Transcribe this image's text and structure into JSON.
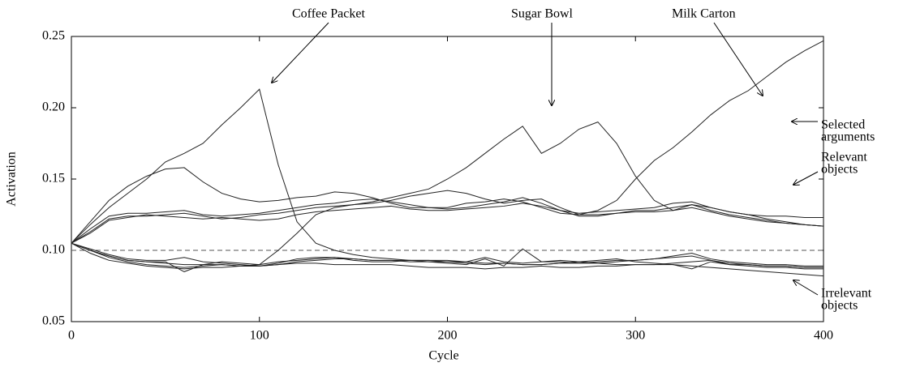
{
  "chart_data": {
    "type": "line",
    "x_label": "Cycle",
    "y_label": "Activation",
    "xlim": [
      0,
      400
    ],
    "xticks": [
      0,
      100,
      200,
      300,
      400
    ],
    "ylim": [
      0.05,
      0.25
    ],
    "yticks": [
      0.05,
      {
        "value": 0.1,
        "label": "0.10"
      },
      0.15,
      {
        "value": 0.2,
        "label": "0.20"
      },
      0.25
    ],
    "reference_line": 0.1,
    "x": [
      0,
      10,
      20,
      30,
      40,
      50,
      60,
      70,
      80,
      90,
      100,
      110,
      120,
      130,
      140,
      150,
      160,
      170,
      180,
      190,
      200,
      210,
      220,
      230,
      240,
      250,
      260,
      270,
      280,
      290,
      300,
      310,
      320,
      330,
      340,
      350,
      360,
      370,
      380,
      390,
      400
    ],
    "series": [
      {
        "color": "#222",
        "values": [
          0.105,
          0.118,
          0.13,
          0.14,
          0.15,
          0.162,
          0.168,
          0.175,
          0.188,
          0.2,
          0.213,
          0.16,
          0.12,
          0.105,
          0.1,
          0.097,
          0.095,
          0.094,
          0.093,
          0.093,
          0.092,
          0.092,
          0.091,
          0.091,
          0.09,
          0.09,
          0.091,
          0.092,
          0.091,
          0.09,
          0.09,
          0.09,
          0.091,
          0.092,
          0.093,
          0.09,
          0.09,
          0.089,
          0.089,
          0.088,
          0.088
        ]
      },
      {
        "color": "#222",
        "values": [
          0.105,
          0.1,
          0.096,
          0.093,
          0.092,
          0.091,
          0.09,
          0.09,
          0.09,
          0.089,
          0.09,
          0.1,
          0.112,
          0.125,
          0.13,
          0.132,
          0.134,
          0.137,
          0.14,
          0.143,
          0.15,
          0.158,
          0.168,
          0.178,
          0.187,
          0.168,
          0.175,
          0.185,
          0.19,
          0.175,
          0.152,
          0.135,
          0.128,
          0.132,
          0.13,
          0.127,
          0.125,
          0.124,
          0.124,
          0.123,
          0.123
        ]
      },
      {
        "color": "#222",
        "values": [
          0.105,
          0.12,
          0.135,
          0.145,
          0.152,
          0.157,
          0.158,
          0.148,
          0.14,
          0.136,
          0.134,
          0.135,
          0.137,
          0.138,
          0.141,
          0.14,
          0.137,
          0.133,
          0.13,
          0.13,
          0.13,
          0.133,
          0.134,
          0.136,
          0.134,
          0.13,
          0.126,
          0.125,
          0.128,
          0.135,
          0.15,
          0.163,
          0.172,
          0.183,
          0.195,
          0.205,
          0.212,
          0.222,
          0.232,
          0.24,
          0.247
        ]
      },
      {
        "color": "#222",
        "values": [
          0.105,
          0.115,
          0.124,
          0.126,
          0.126,
          0.127,
          0.128,
          0.125,
          0.124,
          0.125,
          0.126,
          0.128,
          0.13,
          0.132,
          0.133,
          0.135,
          0.136,
          0.134,
          0.132,
          0.13,
          0.129,
          0.13,
          0.132,
          0.134,
          0.137,
          0.133,
          0.128,
          0.126,
          0.127,
          0.128,
          0.129,
          0.13,
          0.133,
          0.134,
          0.13,
          0.127,
          0.125,
          0.122,
          0.12,
          0.118,
          0.117
        ]
      },
      {
        "color": "#222",
        "values": [
          0.105,
          0.113,
          0.122,
          0.124,
          0.124,
          0.125,
          0.126,
          0.124,
          0.122,
          0.123,
          0.125,
          0.126,
          0.128,
          0.13,
          0.131,
          0.132,
          0.133,
          0.135,
          0.138,
          0.14,
          0.142,
          0.14,
          0.136,
          0.133,
          0.135,
          0.136,
          0.13,
          0.125,
          0.125,
          0.126,
          0.128,
          0.128,
          0.13,
          0.132,
          0.128,
          0.125,
          0.123,
          0.121,
          0.119,
          0.118,
          0.117
        ]
      },
      {
        "color": "#222",
        "values": [
          0.105,
          0.112,
          0.121,
          0.123,
          0.125,
          0.124,
          0.123,
          0.122,
          0.123,
          0.122,
          0.121,
          0.122,
          0.125,
          0.127,
          0.128,
          0.129,
          0.13,
          0.131,
          0.129,
          0.128,
          0.128,
          0.129,
          0.13,
          0.131,
          0.133,
          0.131,
          0.128,
          0.124,
          0.124,
          0.126,
          0.127,
          0.127,
          0.128,
          0.13,
          0.127,
          0.124,
          0.122,
          0.12,
          0.119,
          0.118,
          0.117
        ]
      },
      {
        "color": "#222",
        "values": [
          0.105,
          0.1,
          0.095,
          0.092,
          0.09,
          0.089,
          0.088,
          0.089,
          0.09,
          0.089,
          0.089,
          0.09,
          0.092,
          0.093,
          0.094,
          0.094,
          0.093,
          0.093,
          0.092,
          0.092,
          0.092,
          0.091,
          0.09,
          0.091,
          0.09,
          0.09,
          0.091,
          0.091,
          0.092,
          0.093,
          0.093,
          0.094,
          0.095,
          0.096,
          0.093,
          0.091,
          0.09,
          0.089,
          0.089,
          0.088,
          0.088
        ]
      },
      {
        "color": "#222",
        "values": [
          0.105,
          0.1,
          0.096,
          0.093,
          0.092,
          0.092,
          0.085,
          0.09,
          0.092,
          0.091,
          0.09,
          0.092,
          0.093,
          0.094,
          0.095,
          0.093,
          0.092,
          0.092,
          0.093,
          0.092,
          0.091,
          0.09,
          0.094,
          0.089,
          0.101,
          0.092,
          0.092,
          0.091,
          0.091,
          0.092,
          0.093,
          0.094,
          0.096,
          0.098,
          0.094,
          0.092,
          0.091,
          0.09,
          0.09,
          0.089,
          0.089
        ]
      },
      {
        "color": "#222",
        "values": [
          0.105,
          0.098,
          0.093,
          0.091,
          0.089,
          0.088,
          0.087,
          0.088,
          0.088,
          0.089,
          0.089,
          0.09,
          0.091,
          0.091,
          0.09,
          0.09,
          0.09,
          0.09,
          0.089,
          0.088,
          0.088,
          0.088,
          0.087,
          0.088,
          0.088,
          0.089,
          0.088,
          0.088,
          0.089,
          0.089,
          0.09,
          0.09,
          0.09,
          0.089,
          0.088,
          0.087,
          0.086,
          0.085,
          0.084,
          0.083,
          0.082
        ]
      },
      {
        "color": "#222",
        "values": [
          0.105,
          0.101,
          0.097,
          0.094,
          0.093,
          0.093,
          0.095,
          0.092,
          0.091,
          0.09,
          0.089,
          0.091,
          0.094,
          0.095,
          0.095,
          0.094,
          0.093,
          0.093,
          0.093,
          0.093,
          0.093,
          0.092,
          0.095,
          0.092,
          0.091,
          0.092,
          0.093,
          0.092,
          0.093,
          0.094,
          0.092,
          0.091,
          0.09,
          0.087,
          0.092,
          0.09,
          0.089,
          0.088,
          0.088,
          0.087,
          0.087
        ]
      }
    ],
    "annotations": [
      {
        "lines": [
          "Coffee Packet"
        ]
      },
      {
        "lines": [
          "Sugar Bowl"
        ]
      },
      {
        "lines": [
          "Milk Carton"
        ]
      },
      {
        "lines": [
          "Selected",
          "arguments"
        ]
      },
      {
        "lines": [
          "Relevant",
          "objects"
        ]
      },
      {
        "lines": [
          "Irrelevant",
          "objects"
        ]
      }
    ]
  }
}
